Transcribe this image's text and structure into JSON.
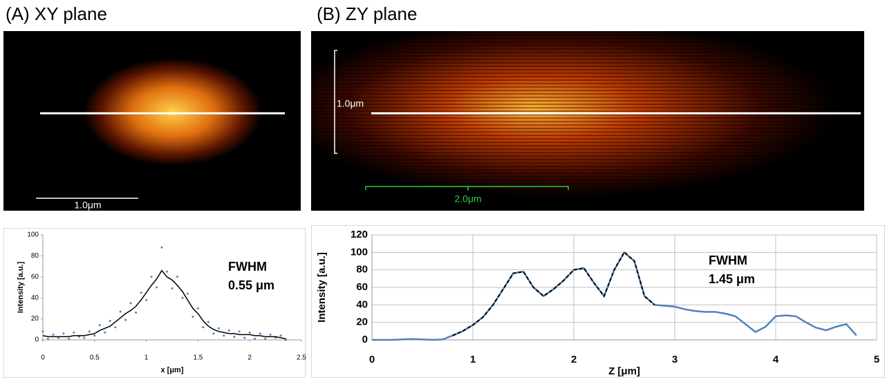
{
  "images": [
    {
      "title": "(A) XY plane",
      "scale_bars": [
        "1.0μm"
      ]
    },
    {
      "title": "(B) ZY plane",
      "scale_bars": [
        "1.0μm",
        "2.0μm"
      ]
    }
  ],
  "chart_data": [
    {
      "type": "line",
      "xlabel": "x [μm]",
      "ylabel": "Intensity [a.u.]",
      "annotations": [
        "FWHM",
        "0.55 μm"
      ],
      "xlim": [
        0,
        2.5
      ],
      "xticks": [
        0,
        0.5,
        1,
        1.5,
        2,
        2.5
      ],
      "ylim": [
        0,
        100
      ],
      "yticks": [
        0,
        20,
        40,
        60,
        80,
        100
      ],
      "grid": false,
      "x": [
        0,
        0.05,
        0.1,
        0.15,
        0.2,
        0.25,
        0.3,
        0.35,
        0.4,
        0.45,
        0.5,
        0.55,
        0.6,
        0.65,
        0.7,
        0.75,
        0.8,
        0.85,
        0.9,
        0.95,
        1,
        1.05,
        1.1,
        1.15,
        1.2,
        1.25,
        1.3,
        1.35,
        1.4,
        1.45,
        1.5,
        1.55,
        1.6,
        1.65,
        1.7,
        1.75,
        1.8,
        1.85,
        1.9,
        1.95,
        2,
        2.05,
        2.1,
        2.15,
        2.2,
        2.25,
        2.3,
        2.35
      ],
      "series": [
        {
          "color": "#4f81bd",
          "style": "points",
          "values": [
            8,
            1,
            5,
            2,
            6,
            1,
            7,
            3,
            2,
            8,
            4,
            14,
            7,
            18,
            12,
            27,
            19,
            35,
            26,
            45,
            38,
            60,
            50,
            88,
            65,
            49,
            60,
            40,
            44,
            22,
            30,
            12,
            17,
            6,
            11,
            4,
            9,
            3,
            8,
            2,
            7,
            1,
            6,
            1,
            5,
            2,
            4,
            0
          ]
        },
        {
          "color": "#000000",
          "style": "solid",
          "values": [
            4,
            3,
            3,
            3,
            3,
            3,
            4,
            4,
            4,
            5,
            6,
            9,
            11,
            13,
            17,
            21,
            25,
            28,
            32,
            38,
            45,
            52,
            58,
            66,
            60,
            57,
            52,
            46,
            38,
            30,
            25,
            18,
            13,
            10,
            8,
            7,
            6,
            6,
            5,
            5,
            5,
            4,
            4,
            3,
            3,
            3,
            2,
            1
          ]
        }
      ]
    },
    {
      "type": "line",
      "xlabel": "Z [μm]",
      "ylabel": "Intensity [a.u.]",
      "annotations": [
        "FWHM",
        "1.45 μm"
      ],
      "xlim": [
        0,
        5
      ],
      "xticks": [
        0,
        1,
        2,
        3,
        4,
        5
      ],
      "ylim": [
        0,
        120
      ],
      "yticks": [
        0,
        20,
        40,
        60,
        80,
        100,
        120
      ],
      "grid": true,
      "x": [
        0,
        0.1,
        0.2,
        0.3,
        0.4,
        0.5,
        0.6,
        0.7,
        0.8,
        0.9,
        1,
        1.1,
        1.2,
        1.3,
        1.4,
        1.5,
        1.6,
        1.7,
        1.8,
        1.9,
        2,
        2.1,
        2.2,
        2.3,
        2.4,
        2.5,
        2.6,
        2.7,
        2.8,
        2.9,
        3,
        3.1,
        3.2,
        3.3,
        3.4,
        3.5,
        3.6,
        3.7,
        3.8,
        3.9,
        4,
        4.1,
        4.2,
        4.3,
        4.4,
        4.5,
        4.6,
        4.7,
        4.8
      ],
      "series": [
        {
          "color": "#4f81bd",
          "style": "solid",
          "values": [
            0,
            0,
            0,
            0.5,
            1,
            0.5,
            0,
            0.5,
            5,
            10,
            17,
            26,
            40,
            58,
            76,
            78,
            60,
            50,
            58,
            68,
            80,
            82,
            65,
            50,
            80,
            100,
            90,
            50,
            40,
            39,
            38,
            35,
            33,
            32,
            32,
            30,
            27,
            18,
            9,
            15,
            27,
            28,
            27,
            20,
            14,
            11,
            15,
            18,
            5
          ]
        },
        {
          "color": "#000000",
          "style": "dashed",
          "values": [
            null,
            null,
            null,
            null,
            null,
            null,
            null,
            null,
            5,
            10,
            17,
            26,
            40,
            58,
            76,
            78,
            60,
            50,
            58,
            68,
            80,
            82,
            65,
            50,
            80,
            100,
            90,
            50,
            40,
            null,
            null,
            null,
            null,
            null,
            null,
            null,
            null,
            null,
            null,
            null,
            null,
            null,
            null,
            null,
            null,
            null,
            null,
            null,
            null
          ]
        }
      ]
    }
  ]
}
